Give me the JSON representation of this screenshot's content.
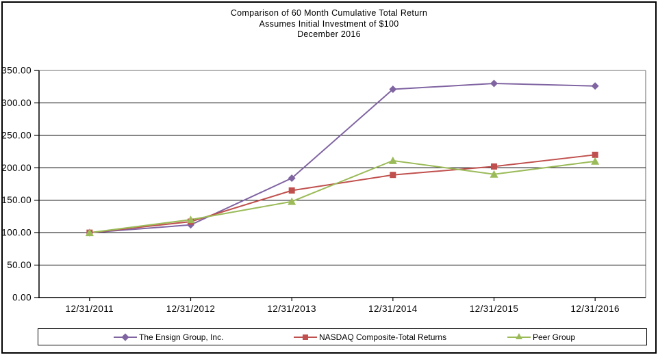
{
  "title": {
    "line1": "Comparison of 60 Month Cumulative Total Return",
    "line2": "Assumes Initial Investment of $100",
    "line3": "December 2016"
  },
  "chart_data": {
    "type": "line",
    "x": [
      "12/31/2011",
      "12/31/2012",
      "12/31/2013",
      "12/31/2014",
      "12/31/2015",
      "12/31/2016"
    ],
    "series": [
      {
        "name": "The Ensign Group, Inc.",
        "color": "#8064A2",
        "marker": "diamond",
        "values": [
          100.0,
          112.0,
          184.0,
          321.0,
          330.0,
          326.0
        ]
      },
      {
        "name": "NASDAQ Composite-Total Returns",
        "color": "#C0504D",
        "marker": "square",
        "values": [
          100.0,
          117.0,
          165.0,
          189.0,
          202.0,
          220.0
        ]
      },
      {
        "name": "Peer Group",
        "color": "#9BBB59",
        "marker": "triangle",
        "values": [
          100.0,
          120.0,
          148.0,
          211.0,
          190.0,
          210.0
        ]
      }
    ],
    "ylim": [
      0,
      350
    ],
    "ytick_step": 50,
    "ytick_labels": [
      "0.00",
      "50.00",
      "100.00",
      "150.00",
      "200.00",
      "250.00",
      "300.00",
      "350.00"
    ],
    "grid": true,
    "legend_position": "bottom",
    "axis_color": "#000000",
    "plot_border_color": "#8c8c8c"
  }
}
